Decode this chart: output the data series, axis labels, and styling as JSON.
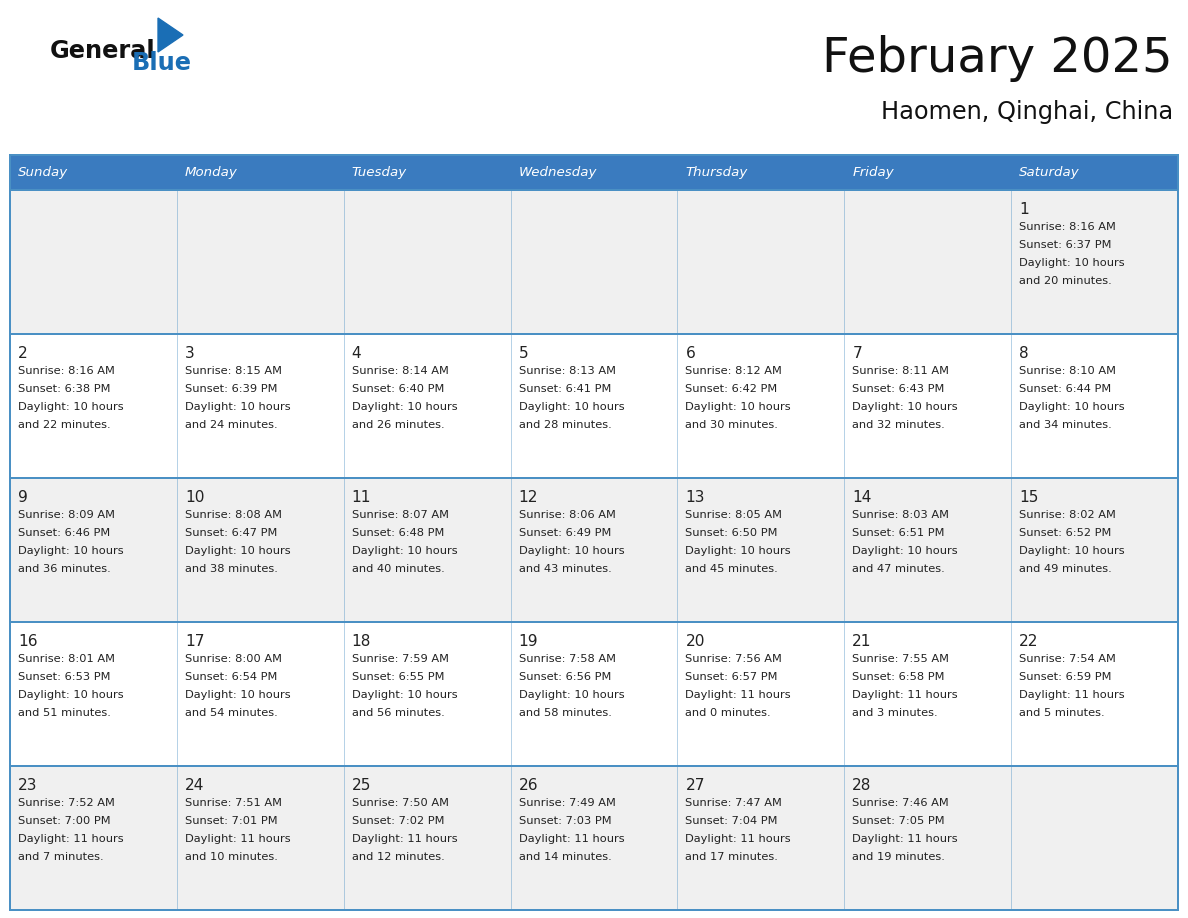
{
  "title": "February 2025",
  "subtitle": "Haomen, Qinghai, China",
  "days_of_week": [
    "Sunday",
    "Monday",
    "Tuesday",
    "Wednesday",
    "Thursday",
    "Friday",
    "Saturday"
  ],
  "header_bg": "#3a7bbf",
  "header_text": "#ffffff",
  "cell_bg_odd": "#f0f0f0",
  "cell_bg_even": "#ffffff",
  "border_color": "#2e6da4",
  "grid_line_color": "#4a90c4",
  "text_color": "#222222",
  "title_color": "#111111",
  "logo_general_color": "#111111",
  "logo_blue_color": "#1a6eb5",
  "calendar_data": [
    [
      null,
      null,
      null,
      null,
      null,
      null,
      {
        "day": 1,
        "sunrise": "8:16 AM",
        "sunset": "6:37 PM",
        "daylight_h": "10 hours",
        "daylight_m": "and 20 minutes."
      }
    ],
    [
      {
        "day": 2,
        "sunrise": "8:16 AM",
        "sunset": "6:38 PM",
        "daylight_h": "10 hours",
        "daylight_m": "and 22 minutes."
      },
      {
        "day": 3,
        "sunrise": "8:15 AM",
        "sunset": "6:39 PM",
        "daylight_h": "10 hours",
        "daylight_m": "and 24 minutes."
      },
      {
        "day": 4,
        "sunrise": "8:14 AM",
        "sunset": "6:40 PM",
        "daylight_h": "10 hours",
        "daylight_m": "and 26 minutes."
      },
      {
        "day": 5,
        "sunrise": "8:13 AM",
        "sunset": "6:41 PM",
        "daylight_h": "10 hours",
        "daylight_m": "and 28 minutes."
      },
      {
        "day": 6,
        "sunrise": "8:12 AM",
        "sunset": "6:42 PM",
        "daylight_h": "10 hours",
        "daylight_m": "and 30 minutes."
      },
      {
        "day": 7,
        "sunrise": "8:11 AM",
        "sunset": "6:43 PM",
        "daylight_h": "10 hours",
        "daylight_m": "and 32 minutes."
      },
      {
        "day": 8,
        "sunrise": "8:10 AM",
        "sunset": "6:44 PM",
        "daylight_h": "10 hours",
        "daylight_m": "and 34 minutes."
      }
    ],
    [
      {
        "day": 9,
        "sunrise": "8:09 AM",
        "sunset": "6:46 PM",
        "daylight_h": "10 hours",
        "daylight_m": "and 36 minutes."
      },
      {
        "day": 10,
        "sunrise": "8:08 AM",
        "sunset": "6:47 PM",
        "daylight_h": "10 hours",
        "daylight_m": "and 38 minutes."
      },
      {
        "day": 11,
        "sunrise": "8:07 AM",
        "sunset": "6:48 PM",
        "daylight_h": "10 hours",
        "daylight_m": "and 40 minutes."
      },
      {
        "day": 12,
        "sunrise": "8:06 AM",
        "sunset": "6:49 PM",
        "daylight_h": "10 hours",
        "daylight_m": "and 43 minutes."
      },
      {
        "day": 13,
        "sunrise": "8:05 AM",
        "sunset": "6:50 PM",
        "daylight_h": "10 hours",
        "daylight_m": "and 45 minutes."
      },
      {
        "day": 14,
        "sunrise": "8:03 AM",
        "sunset": "6:51 PM",
        "daylight_h": "10 hours",
        "daylight_m": "and 47 minutes."
      },
      {
        "day": 15,
        "sunrise": "8:02 AM",
        "sunset": "6:52 PM",
        "daylight_h": "10 hours",
        "daylight_m": "and 49 minutes."
      }
    ],
    [
      {
        "day": 16,
        "sunrise": "8:01 AM",
        "sunset": "6:53 PM",
        "daylight_h": "10 hours",
        "daylight_m": "and 51 minutes."
      },
      {
        "day": 17,
        "sunrise": "8:00 AM",
        "sunset": "6:54 PM",
        "daylight_h": "10 hours",
        "daylight_m": "and 54 minutes."
      },
      {
        "day": 18,
        "sunrise": "7:59 AM",
        "sunset": "6:55 PM",
        "daylight_h": "10 hours",
        "daylight_m": "and 56 minutes."
      },
      {
        "day": 19,
        "sunrise": "7:58 AM",
        "sunset": "6:56 PM",
        "daylight_h": "10 hours",
        "daylight_m": "and 58 minutes."
      },
      {
        "day": 20,
        "sunrise": "7:56 AM",
        "sunset": "6:57 PM",
        "daylight_h": "11 hours",
        "daylight_m": "and 0 minutes."
      },
      {
        "day": 21,
        "sunrise": "7:55 AM",
        "sunset": "6:58 PM",
        "daylight_h": "11 hours",
        "daylight_m": "and 3 minutes."
      },
      {
        "day": 22,
        "sunrise": "7:54 AM",
        "sunset": "6:59 PM",
        "daylight_h": "11 hours",
        "daylight_m": "and 5 minutes."
      }
    ],
    [
      {
        "day": 23,
        "sunrise": "7:52 AM",
        "sunset": "7:00 PM",
        "daylight_h": "11 hours",
        "daylight_m": "and 7 minutes."
      },
      {
        "day": 24,
        "sunrise": "7:51 AM",
        "sunset": "7:01 PM",
        "daylight_h": "11 hours",
        "daylight_m": "and 10 minutes."
      },
      {
        "day": 25,
        "sunrise": "7:50 AM",
        "sunset": "7:02 PM",
        "daylight_h": "11 hours",
        "daylight_m": "and 12 minutes."
      },
      {
        "day": 26,
        "sunrise": "7:49 AM",
        "sunset": "7:03 PM",
        "daylight_h": "11 hours",
        "daylight_m": "and 14 minutes."
      },
      {
        "day": 27,
        "sunrise": "7:47 AM",
        "sunset": "7:04 PM",
        "daylight_h": "11 hours",
        "daylight_m": "and 17 minutes."
      },
      {
        "day": 28,
        "sunrise": "7:46 AM",
        "sunset": "7:05 PM",
        "daylight_h": "11 hours",
        "daylight_m": "and 19 minutes."
      },
      null
    ]
  ]
}
